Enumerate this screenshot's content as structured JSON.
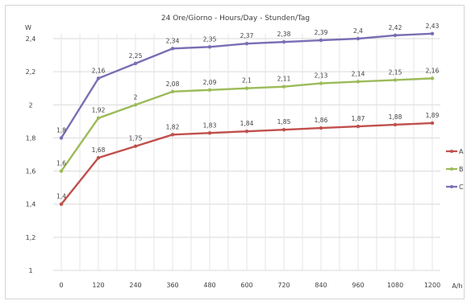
{
  "chart_data": {
    "type": "line",
    "title": "24 Ore/Giorno - Hours/Day - Stunden/Tag",
    "ylabel": "W",
    "xlabel": "A/h",
    "categories": [
      "0",
      "120",
      "240",
      "360",
      "480",
      "600",
      "720",
      "840",
      "960",
      "1080",
      "1200"
    ],
    "ylim": [
      1,
      2.4
    ],
    "yticks": [
      "1",
      "1,2",
      "1,4",
      "1,6",
      "1,8",
      "2",
      "2,2",
      "2,4"
    ],
    "grid": true,
    "legend_position": "right",
    "series": [
      {
        "name": "A",
        "color": "#c0504d",
        "values": [
          1.4,
          1.68,
          1.75,
          1.82,
          1.83,
          1.84,
          1.85,
          1.86,
          1.87,
          1.88,
          1.89
        ],
        "labels": [
          "1,4",
          "1,68",
          "1,75",
          "1,82",
          "1,83",
          "1,84",
          "1,85",
          "1,86",
          "1,87",
          "1,88",
          "1,89"
        ]
      },
      {
        "name": "B",
        "color": "#9bbb59",
        "values": [
          1.6,
          1.92,
          2.0,
          2.08,
          2.09,
          2.1,
          2.11,
          2.13,
          2.14,
          2.15,
          2.16
        ],
        "labels": [
          "1,6",
          "1,92",
          "2",
          "2,08",
          "2,09",
          "2,1",
          "2,11",
          "2,13",
          "2,14",
          "2,15",
          "2,16"
        ]
      },
      {
        "name": "C",
        "color": "#7b6eb4",
        "values": [
          1.8,
          2.16,
          2.25,
          2.34,
          2.35,
          2.37,
          2.38,
          2.39,
          2.4,
          2.42,
          2.43
        ],
        "labels": [
          "1,8",
          "2,16",
          "2,25",
          "2,34",
          "2,35",
          "2,37",
          "2,38",
          "2,39",
          "2,4",
          "2,42",
          "2,43"
        ]
      }
    ]
  }
}
